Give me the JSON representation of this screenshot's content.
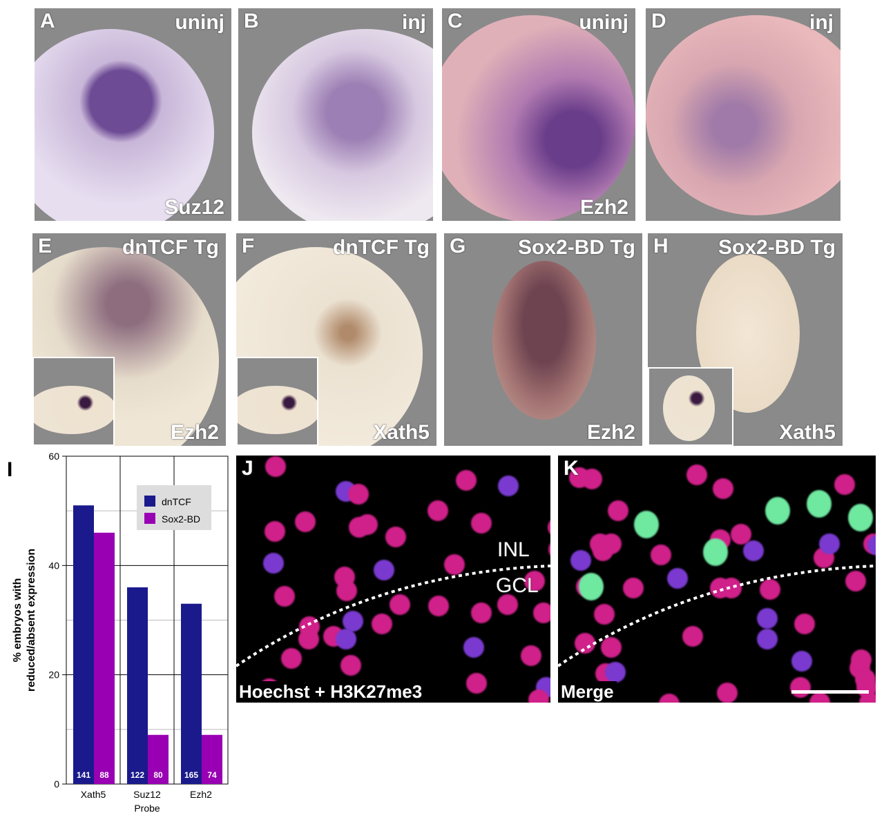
{
  "panels": [
    {
      "letter": "A",
      "top": "uninj",
      "bottom": "Suz12"
    },
    {
      "letter": "B",
      "top": "inj",
      "bottom": ""
    },
    {
      "letter": "C",
      "top": "uninj",
      "bottom": "Ezh2"
    },
    {
      "letter": "D",
      "top": "inj",
      "bottom": ""
    },
    {
      "letter": "E",
      "top": "dnTCF Tg",
      "bottom": "Ezh2"
    },
    {
      "letter": "F",
      "top": "dnTCF Tg",
      "bottom": "Xath5"
    },
    {
      "letter": "G",
      "top": "Sox2-BD Tg",
      "bottom": "Ezh2"
    },
    {
      "letter": "H",
      "top": "Sox2-BD Tg",
      "bottom": "Xath5"
    }
  ],
  "fluor": {
    "J": {
      "letter": "J",
      "caption": "Hoechst + H3K27me3",
      "inl": "INL",
      "gcl": "GCL"
    },
    "K": {
      "letter": "K",
      "caption": "Merge"
    }
  },
  "chart_letter": "I",
  "chart_data": {
    "type": "bar",
    "categories": [
      "Xath5",
      "Suz12",
      "Ezh2"
    ],
    "series": [
      {
        "name": "dnTCF",
        "color": "#1a1a8c",
        "values": [
          51,
          36,
          33
        ],
        "n": [
          "141",
          "122",
          "165"
        ]
      },
      {
        "name": "Sox2-BD",
        "color": "#9900b3",
        "values": [
          46,
          9,
          9
        ],
        "n": [
          "88",
          "80",
          "74"
        ]
      }
    ],
    "xlabel": "Probe",
    "ylabel": "% embryos with reduced/absent expression",
    "ylabel_lines": [
      "% embryos with",
      "reduced/absent expression"
    ],
    "ylim": [
      0,
      60
    ],
    "yticks": [
      0,
      20,
      40,
      60
    ],
    "grid": true,
    "legend": "top-right"
  }
}
